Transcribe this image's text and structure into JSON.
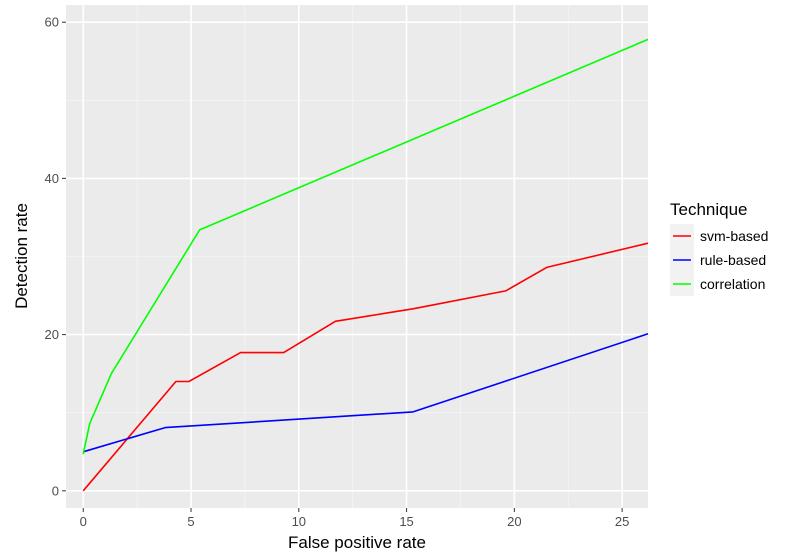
{
  "chart_data": {
    "type": "line",
    "xlabel": "False positive rate",
    "ylabel": "Detection rate",
    "xlim": [
      -0.8,
      26.2
    ],
    "ylim": [
      -2.2,
      62.2
    ],
    "x_ticks": [
      0,
      5,
      10,
      15,
      20,
      25
    ],
    "y_ticks": [
      0,
      20,
      40,
      60
    ],
    "x_tick_labels": [
      "0",
      "5",
      "10",
      "15",
      "20",
      "25"
    ],
    "y_tick_labels": [
      "0",
      "20",
      "40",
      "60"
    ],
    "grid": true,
    "background": "#ebebeb",
    "grid_color": "#ffffff",
    "legend": {
      "title": "Technique",
      "position": "right"
    },
    "series": [
      {
        "name": "svm-based",
        "color": "#ff0000",
        "points": [
          [
            0,
            0
          ],
          [
            4.3,
            14.0
          ],
          [
            4.9,
            14.0
          ],
          [
            7.3,
            17.7
          ],
          [
            9.3,
            17.7
          ],
          [
            11.7,
            21.7
          ],
          [
            15.3,
            23.3
          ],
          [
            19.6,
            25.6
          ],
          [
            21.5,
            28.6
          ],
          [
            26.2,
            31.7
          ]
        ]
      },
      {
        "name": "rule-based",
        "color": "#0000ff",
        "points": [
          [
            0,
            5.0
          ],
          [
            3.8,
            8.1
          ],
          [
            15.3,
            10.1
          ],
          [
            26.2,
            20.1
          ]
        ]
      },
      {
        "name": "correlation",
        "color": "#00ff00",
        "points": [
          [
            0,
            4.7
          ],
          [
            0.3,
            8.6
          ],
          [
            1.3,
            15.0
          ],
          [
            5.4,
            33.4
          ],
          [
            26.2,
            57.8
          ]
        ]
      }
    ]
  }
}
